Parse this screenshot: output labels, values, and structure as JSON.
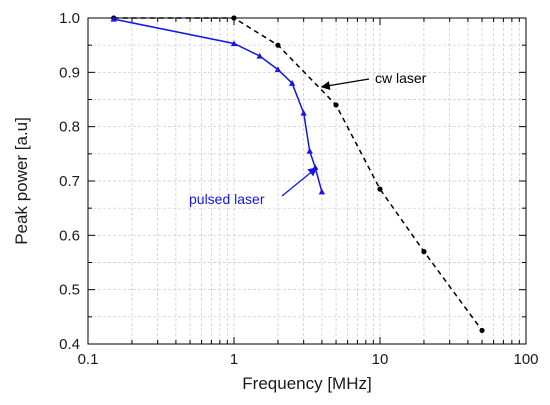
{
  "chart_data": {
    "type": "line",
    "title": "",
    "xlabel": "Frequency [MHz]",
    "ylabel": "Peak power [a.u]",
    "xscale": "log",
    "xlim": [
      0.1,
      100
    ],
    "ylim": [
      0.4,
      1.0
    ],
    "grid": true,
    "x_ticks": [
      "0.1",
      "1",
      "10",
      "100"
    ],
    "y_ticks": [
      "0.4",
      "0.5",
      "0.6",
      "0.7",
      "0.8",
      "0.9",
      "1.0"
    ],
    "series": [
      {
        "name": "cw laser",
        "color": "#000000",
        "line_style": "dashed",
        "marker": "circle",
        "x": [
          0.15,
          1.0,
          2.0,
          5.0,
          10.0,
          20.0,
          50.0
        ],
        "y": [
          1.0,
          1.0,
          0.95,
          0.84,
          0.685,
          0.57,
          0.425
        ]
      },
      {
        "name": "pulsed laser",
        "color": "#1515e6",
        "line_style": "solid",
        "marker": "triangle",
        "x": [
          0.15,
          1.0,
          1.5,
          2.0,
          2.5,
          3.0,
          3.3,
          3.6,
          4.0
        ],
        "y": [
          0.998,
          0.953,
          0.93,
          0.905,
          0.88,
          0.825,
          0.755,
          0.725,
          0.68
        ]
      }
    ],
    "annotations": [
      {
        "text": "cw laser",
        "color": "#000000",
        "points_to": [
          3.8,
          0.875
        ]
      },
      {
        "text": "pulsed laser",
        "color": "#1515e6",
        "points_to": [
          3.8,
          0.73
        ]
      }
    ]
  }
}
